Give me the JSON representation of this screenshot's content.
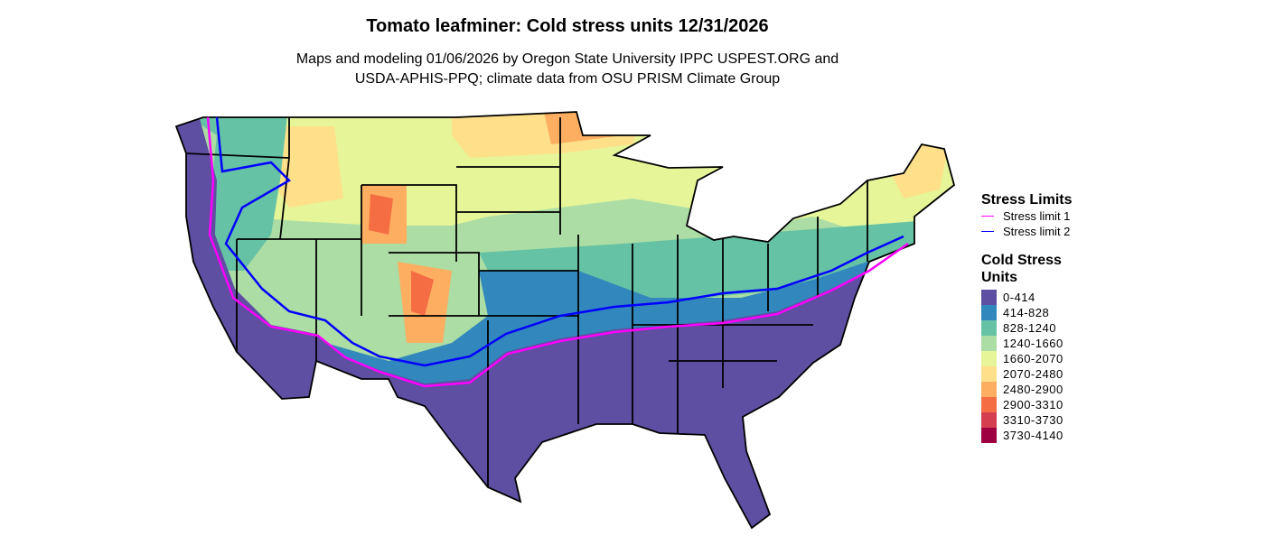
{
  "title": "Tomato leafminer: Cold stress units 12/31/2026",
  "subtitle_line1": "Maps and modeling 01/06/2026 by Oregon State University IPPC USPEST.ORG and",
  "subtitle_line2": "USDA-APHIS-PPQ; climate data from OSU PRISM Climate Group",
  "legend": {
    "stress_title": "Stress Limits",
    "stress_limits": [
      {
        "label": "Stress limit 1",
        "color": "#FF00FF"
      },
      {
        "label": "Stress limit 2",
        "color": "#0000FF"
      }
    ],
    "csu_title": "Cold Stress Units",
    "classes": [
      {
        "label": "0-414",
        "color": "#5E4FA2"
      },
      {
        "label": "414-828",
        "color": "#3288BD"
      },
      {
        "label": "828-1240",
        "color": "#66C2A5"
      },
      {
        "label": "1240-1660",
        "color": "#ABDDA4"
      },
      {
        "label": "1660-2070",
        "color": "#E6F598"
      },
      {
        "label": "2070-2480",
        "color": "#FEE08B"
      },
      {
        "label": "2480-2900",
        "color": "#FDAE61"
      },
      {
        "label": "2900-3310",
        "color": "#F46D43"
      },
      {
        "label": "3310-3730",
        "color": "#D53E4F"
      },
      {
        "label": "3730-4140",
        "color": "#9E0142"
      }
    ]
  }
}
